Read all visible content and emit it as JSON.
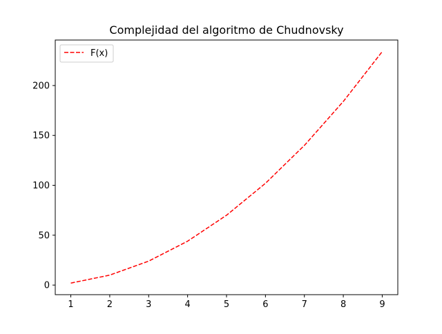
{
  "chart_data": {
    "type": "line",
    "title": "Complejidad del algoritmo de Chudnovsky",
    "xlabel": "",
    "ylabel": "",
    "x": [
      1,
      2,
      3,
      4,
      5,
      6,
      7,
      8,
      9
    ],
    "series": [
      {
        "name": "F(x)",
        "values": [
          2,
          10,
          24,
          44,
          70,
          102,
          140,
          184,
          234
        ],
        "color": "#ff0000",
        "line_style": "dashed"
      }
    ],
    "xlim": [
      0.6,
      9.4
    ],
    "ylim": [
      -9.6,
      245.6
    ],
    "xticks": [
      1,
      2,
      3,
      4,
      5,
      6,
      7,
      8,
      9
    ],
    "yticks": [
      0,
      50,
      100,
      150,
      200
    ],
    "grid": false,
    "legend_position": "upper left"
  }
}
